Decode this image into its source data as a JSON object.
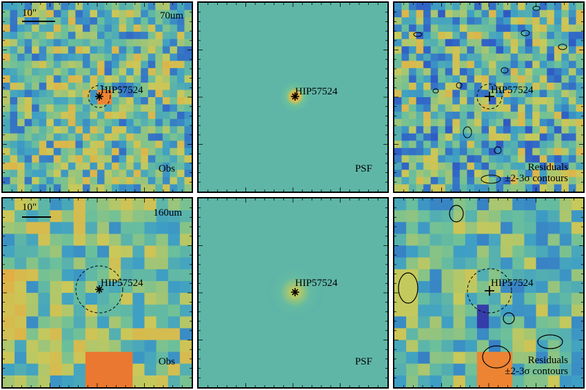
{
  "star_name": "HIP57524",
  "scalebar_label": "10\"",
  "rows": [
    {
      "band": "70um",
      "panels": [
        {
          "kind": "obs",
          "label": "Obs"
        },
        {
          "kind": "psf",
          "label": "PSF"
        },
        {
          "kind": "residual",
          "label": "Residuals",
          "label2": "±2-3σ contours"
        }
      ]
    },
    {
      "band": "160um",
      "panels": [
        {
          "kind": "obs",
          "label": "Obs"
        },
        {
          "kind": "psf",
          "label": "PSF"
        },
        {
          "kind": "residual",
          "label": "Residuals",
          "label2": "±2-3σ contours"
        }
      ]
    }
  ],
  "colormap": [
    "#3b1e8c",
    "#2f5fc6",
    "#3fa0c4",
    "#6cc09a",
    "#c8c95a",
    "#f0a13a",
    "#e23b22"
  ]
}
